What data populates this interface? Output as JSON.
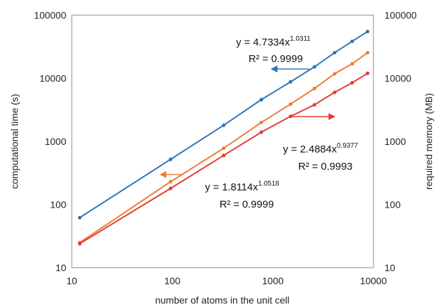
{
  "chart_data": {
    "type": "line",
    "xscale": "log",
    "yscale": "log",
    "xlim": [
      10,
      10000
    ],
    "ylim": [
      10,
      100000
    ],
    "y2lim": [
      10,
      100000
    ],
    "xlabel": "number of atoms in the unit cell",
    "ylabel": "computational time (s)",
    "y2label": "required memory (MB)",
    "x_ticks": [
      "10",
      "100",
      "1000",
      "10000"
    ],
    "y_ticks": [
      "10",
      "100",
      "1000",
      "10000",
      "100000"
    ],
    "y2_ticks": [
      "10",
      "100",
      "1000",
      "10000",
      "100000"
    ],
    "grid": false,
    "series": [
      {
        "color": "#2e75b6",
        "x": [
          12,
          96,
          324,
          768,
          1500,
          2592,
          4116,
          6144,
          8748
        ],
        "y": [
          62,
          520,
          1800,
          4600,
          8800,
          15200,
          25500,
          38500,
          55000
        ]
      },
      {
        "color": "#ed7d31",
        "x": [
          12,
          96,
          324,
          768,
          1500,
          2592,
          4116,
          6144,
          8748
        ],
        "y": [
          25,
          230,
          780,
          2000,
          3900,
          6900,
          11800,
          17000,
          25500
        ]
      },
      {
        "color": "#e03c31",
        "x": [
          12,
          96,
          324,
          768,
          1500,
          2592,
          4116,
          6144,
          8748
        ],
        "y": [
          24,
          180,
          600,
          1400,
          2500,
          3800,
          6000,
          8500,
          12000
        ]
      }
    ],
    "annotations": [
      {
        "eq_base": "y = 4.7334x",
        "eq_exp": "1.0311",
        "r2": "R² = 0.9999",
        "arrow": "left",
        "color": "#2e75b6"
      },
      {
        "eq_base": "y = 1.8114x",
        "eq_exp": "1.0518",
        "r2": "R² = 0.9999",
        "arrow": "left",
        "color": "#ed7d31"
      },
      {
        "eq_base": "y = 2.4884x",
        "eq_exp": "0.9377",
        "r2": "R² = 0.9993",
        "arrow": "right",
        "color": "#e03c31"
      }
    ]
  }
}
